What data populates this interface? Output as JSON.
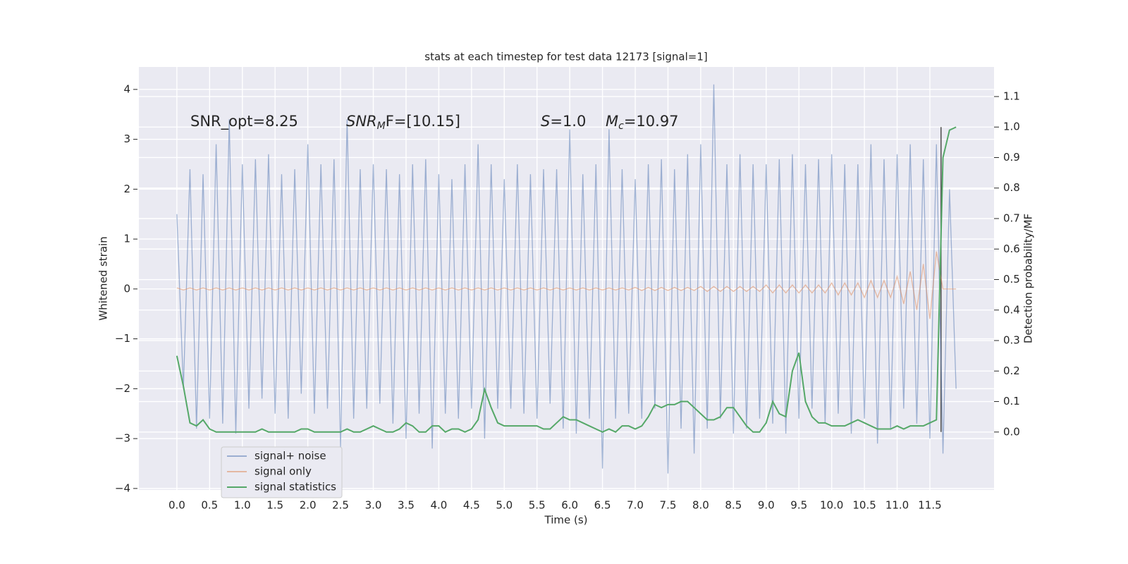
{
  "chart_data": {
    "type": "line",
    "title": "stats at each timestep for test data 12173 [signal=1]",
    "xlabel": "Time (s)",
    "ylabel": "Whitened strain",
    "y2label": "Detection probability/MF",
    "annotations": [
      [
        {
          "text": "SNR_opt=8.25"
        }
      ],
      [
        {
          "text": "SNR",
          "italic": true
        },
        {
          "text": "M",
          "italic": true,
          "sub": true
        },
        {
          "text": "F=[10.15]"
        }
      ],
      [
        {
          "text": "S",
          "italic": true
        },
        {
          "text": "=1.0"
        }
      ],
      [
        {
          "text": "M",
          "italic": true
        },
        {
          "text": "c",
          "italic": true,
          "sub": true
        },
        {
          "text": "=10.97"
        }
      ]
    ],
    "x": [
      0,
      0.1,
      0.2,
      0.3,
      0.4,
      0.5,
      0.6,
      0.7,
      0.8,
      0.9,
      1.0,
      1.1,
      1.2,
      1.3,
      1.4,
      1.5,
      1.6,
      1.7,
      1.8,
      1.9,
      2.0,
      2.1,
      2.2,
      2.3,
      2.4,
      2.5,
      2.6,
      2.7,
      2.8,
      2.9,
      3.0,
      3.1,
      3.2,
      3.3,
      3.4,
      3.5,
      3.6,
      3.7,
      3.8,
      3.9,
      4.0,
      4.1,
      4.2,
      4.3,
      4.4,
      4.5,
      4.6,
      4.7,
      4.8,
      4.9,
      5.0,
      5.1,
      5.2,
      5.3,
      5.4,
      5.5,
      5.6,
      5.7,
      5.8,
      5.9,
      6.0,
      6.1,
      6.2,
      6.3,
      6.4,
      6.5,
      6.6,
      6.7,
      6.8,
      6.9,
      7.0,
      7.1,
      7.2,
      7.3,
      7.4,
      7.5,
      7.6,
      7.7,
      7.8,
      7.9,
      8.0,
      8.1,
      8.2,
      8.3,
      8.4,
      8.5,
      8.6,
      8.7,
      8.8,
      8.9,
      9.0,
      9.1,
      9.2,
      9.3,
      9.4,
      9.5,
      9.6,
      9.7,
      9.8,
      9.9,
      10.0,
      10.1,
      10.2,
      10.3,
      10.4,
      10.5,
      10.6,
      10.7,
      10.8,
      10.9,
      11.0,
      11.1,
      11.2,
      11.3,
      11.4,
      11.5,
      11.6,
      11.7,
      11.8,
      11.9
    ],
    "series": [
      {
        "name": "signal+ noise",
        "color": "#4c72b0",
        "opacity": 0.5,
        "axis": "y",
        "values": [
          1.5,
          -2.0,
          2.4,
          -2.8,
          2.3,
          -2.6,
          2.9,
          -2.7,
          3.4,
          -2.9,
          2.5,
          -2.4,
          2.6,
          -2.2,
          2.7,
          -2.5,
          2.3,
          -2.6,
          2.4,
          -2.1,
          2.9,
          -2.5,
          2.5,
          -2.4,
          2.6,
          -3.2,
          3.4,
          -2.6,
          2.4,
          -2.4,
          2.5,
          -2.3,
          2.4,
          -2.7,
          2.3,
          -3.0,
          2.5,
          -2.5,
          2.6,
          -3.2,
          2.3,
          -2.5,
          2.2,
          -2.6,
          2.5,
          -2.4,
          2.9,
          -3.0,
          2.5,
          -2.4,
          2.2,
          -2.4,
          2.5,
          -2.5,
          2.3,
          -2.6,
          2.4,
          -2.3,
          2.4,
          -2.8,
          3.2,
          -2.9,
          2.3,
          -2.6,
          2.5,
          -3.6,
          3.2,
          -2.6,
          2.4,
          -2.5,
          2.2,
          -2.6,
          2.5,
          -2.4,
          2.6,
          -3.7,
          2.4,
          -2.8,
          2.7,
          -3.3,
          2.9,
          -2.8,
          4.1,
          -2.6,
          2.5,
          -2.9,
          2.7,
          -2.8,
          2.5,
          -2.6,
          2.5,
          -2.7,
          2.6,
          -2.9,
          2.7,
          -2.6,
          2.5,
          -2.4,
          2.6,
          -2.7,
          2.7,
          -2.5,
          2.5,
          -2.9,
          2.5,
          -2.6,
          2.9,
          -3.1,
          2.6,
          -2.8,
          2.7,
          -2.4,
          2.9,
          -2.7,
          2.6,
          -3.0,
          2.9,
          -3.3,
          2.0,
          -2.0
        ]
      },
      {
        "name": "signal only",
        "color": "#dd8452",
        "opacity": 0.5,
        "axis": "y",
        "values": [
          0.02,
          -0.02,
          0.02,
          -0.02,
          0.02,
          -0.02,
          0.02,
          -0.02,
          0.02,
          -0.02,
          0.02,
          -0.02,
          0.02,
          -0.02,
          0.02,
          -0.02,
          0.02,
          -0.02,
          0.02,
          -0.02,
          0.02,
          -0.02,
          0.02,
          -0.02,
          0.02,
          -0.02,
          0.02,
          -0.02,
          0.02,
          -0.02,
          0.02,
          -0.02,
          0.02,
          -0.02,
          0.02,
          -0.02,
          0.02,
          -0.02,
          0.02,
          -0.02,
          0.02,
          -0.02,
          0.02,
          -0.02,
          0.02,
          -0.02,
          0.02,
          -0.02,
          0.02,
          -0.02,
          0.02,
          -0.02,
          0.02,
          -0.02,
          0.02,
          -0.02,
          0.02,
          -0.02,
          0.02,
          -0.02,
          0.02,
          -0.02,
          0.02,
          -0.02,
          0.02,
          -0.02,
          0.02,
          -0.02,
          0.02,
          -0.02,
          0.03,
          -0.03,
          0.03,
          -0.03,
          0.03,
          -0.03,
          0.03,
          -0.03,
          0.03,
          -0.03,
          0.05,
          -0.05,
          0.05,
          -0.05,
          0.05,
          -0.05,
          0.05,
          -0.05,
          0.05,
          -0.05,
          0.08,
          -0.08,
          0.08,
          -0.08,
          0.08,
          -0.08,
          0.08,
          -0.08,
          0.08,
          -0.08,
          0.12,
          -0.12,
          0.12,
          -0.12,
          0.12,
          -0.17,
          0.17,
          -0.17,
          0.17,
          -0.17,
          0.25,
          -0.3,
          0.35,
          -0.42,
          0.5,
          -0.6,
          0.75,
          0,
          0,
          0
        ]
      },
      {
        "name": "signal statistics",
        "color": "#55a868",
        "opacity": 1,
        "axis": "y2",
        "values": [
          0.25,
          0.15,
          0.03,
          0.02,
          0.04,
          0.01,
          0.0,
          0.0,
          0.0,
          0.0,
          0.0,
          0.0,
          0.0,
          0.01,
          0.0,
          0.0,
          0.0,
          0.0,
          0.0,
          0.01,
          0.01,
          0.0,
          0.0,
          0.0,
          0.0,
          0.0,
          0.01,
          0.0,
          0.0,
          0.01,
          0.02,
          0.01,
          0.0,
          0.0,
          0.01,
          0.03,
          0.02,
          0.0,
          0.0,
          0.02,
          0.02,
          0.0,
          0.01,
          0.01,
          0.0,
          0.01,
          0.04,
          0.14,
          0.08,
          0.03,
          0.02,
          0.02,
          0.02,
          0.02,
          0.02,
          0.02,
          0.01,
          0.01,
          0.03,
          0.05,
          0.04,
          0.04,
          0.03,
          0.02,
          0.01,
          0.0,
          0.01,
          0.0,
          0.02,
          0.02,
          0.01,
          0.02,
          0.05,
          0.09,
          0.08,
          0.09,
          0.09,
          0.1,
          0.1,
          0.08,
          0.06,
          0.04,
          0.04,
          0.05,
          0.08,
          0.08,
          0.05,
          0.02,
          0.0,
          0.0,
          0.03,
          0.1,
          0.06,
          0.05,
          0.2,
          0.26,
          0.1,
          0.05,
          0.03,
          0.03,
          0.02,
          0.02,
          0.02,
          0.03,
          0.04,
          0.03,
          0.02,
          0.01,
          0.01,
          0.01,
          0.02,
          0.01,
          0.02,
          0.02,
          0.02,
          0.03,
          0.04,
          0.9,
          0.99,
          1.0
        ]
      }
    ],
    "vline": {
      "x": 11.67,
      "y2": [
        0,
        1.0
      ],
      "color": "#555555"
    },
    "xlim": [
      -0.58,
      12.48
    ],
    "ylim": [
      -4.03,
      4.45
    ],
    "y2lim": [
      -0.19,
      1.197
    ],
    "xticks": [
      {
        "value": 0,
        "label": "0.0"
      },
      0.5,
      {
        "value": 1,
        "label": "1.0"
      },
      1.5,
      {
        "value": 2,
        "label": "2.0"
      },
      2.5,
      {
        "value": 3,
        "label": "3.0"
      },
      3.5,
      {
        "value": 4,
        "label": "4.0"
      },
      4.5,
      {
        "value": 5,
        "label": "5.0"
      },
      5.5,
      {
        "value": 6,
        "label": "6.0"
      },
      6.5,
      {
        "value": 7,
        "label": "7.0"
      },
      7.5,
      {
        "value": 8,
        "label": "8.0"
      },
      8.5,
      {
        "value": 9,
        "label": "9.0"
      },
      9.5,
      {
        "value": 10,
        "label": "10.0"
      },
      10.5,
      {
        "value": 11,
        "label": "11.0"
      },
      11.5
    ],
    "yticks": [
      {
        "value": -4,
        "label": "−4"
      },
      {
        "value": -3,
        "label": "−3"
      },
      {
        "value": -2,
        "label": "−2"
      },
      {
        "value": -1,
        "label": "−1"
      },
      0,
      1,
      2,
      3,
      4
    ],
    "y2ticks": [
      {
        "value": 0,
        "label": "0.0"
      },
      0.1,
      0.2,
      0.3,
      0.4,
      0.5,
      0.6,
      0.7,
      0.8,
      0.9,
      {
        "value": 1,
        "label": "1.0"
      },
      1.1
    ],
    "grid": true,
    "legend": "lower left"
  }
}
